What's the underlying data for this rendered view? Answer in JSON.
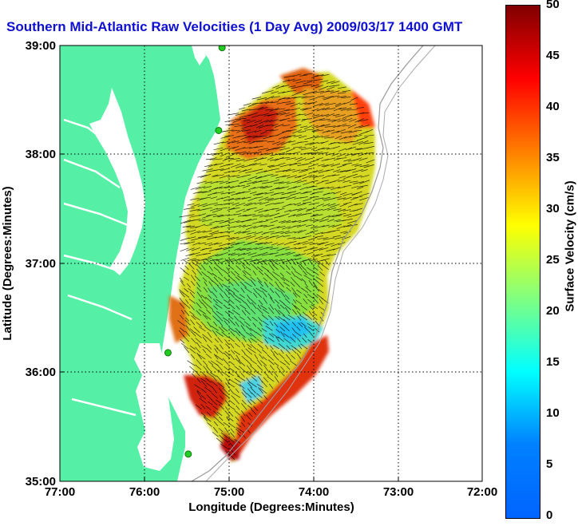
{
  "title": "Southern Mid-Atlantic Raw Velocities (1 Day Avg) 2009/03/17 1400 GMT",
  "map": {
    "xlabel": "Longitude (Degrees:Minutes)",
    "ylabel": "Latitude (Degrees:Minutes)",
    "lon_ticks": [
      "77:00",
      "76:00",
      "75:00",
      "74:00",
      "73:00",
      "72:00"
    ],
    "lat_ticks": [
      "39:00",
      "38:00",
      "37:00",
      "36:00",
      "35:00"
    ],
    "lon_range": [
      -77,
      -72
    ],
    "lat_range": [
      35,
      39
    ],
    "land_color": "#55f0a5",
    "water_color": "#ffffff",
    "station_color": "#22cc22",
    "stations": [
      {
        "lon": -75.08,
        "lat": 38.98
      },
      {
        "lon": -75.12,
        "lat": 38.22
      },
      {
        "lon": -75.72,
        "lat": 36.18
      },
      {
        "lon": -75.48,
        "lat": 35.25
      }
    ]
  },
  "colorbar": {
    "label": "Surface Velocity (cm/s)",
    "ticks": [
      "50",
      "45",
      "40",
      "35",
      "30",
      "25",
      "20",
      "15",
      "10",
      "5",
      "0"
    ],
    "range": [
      0,
      50
    ],
    "colormap": "jet"
  }
}
